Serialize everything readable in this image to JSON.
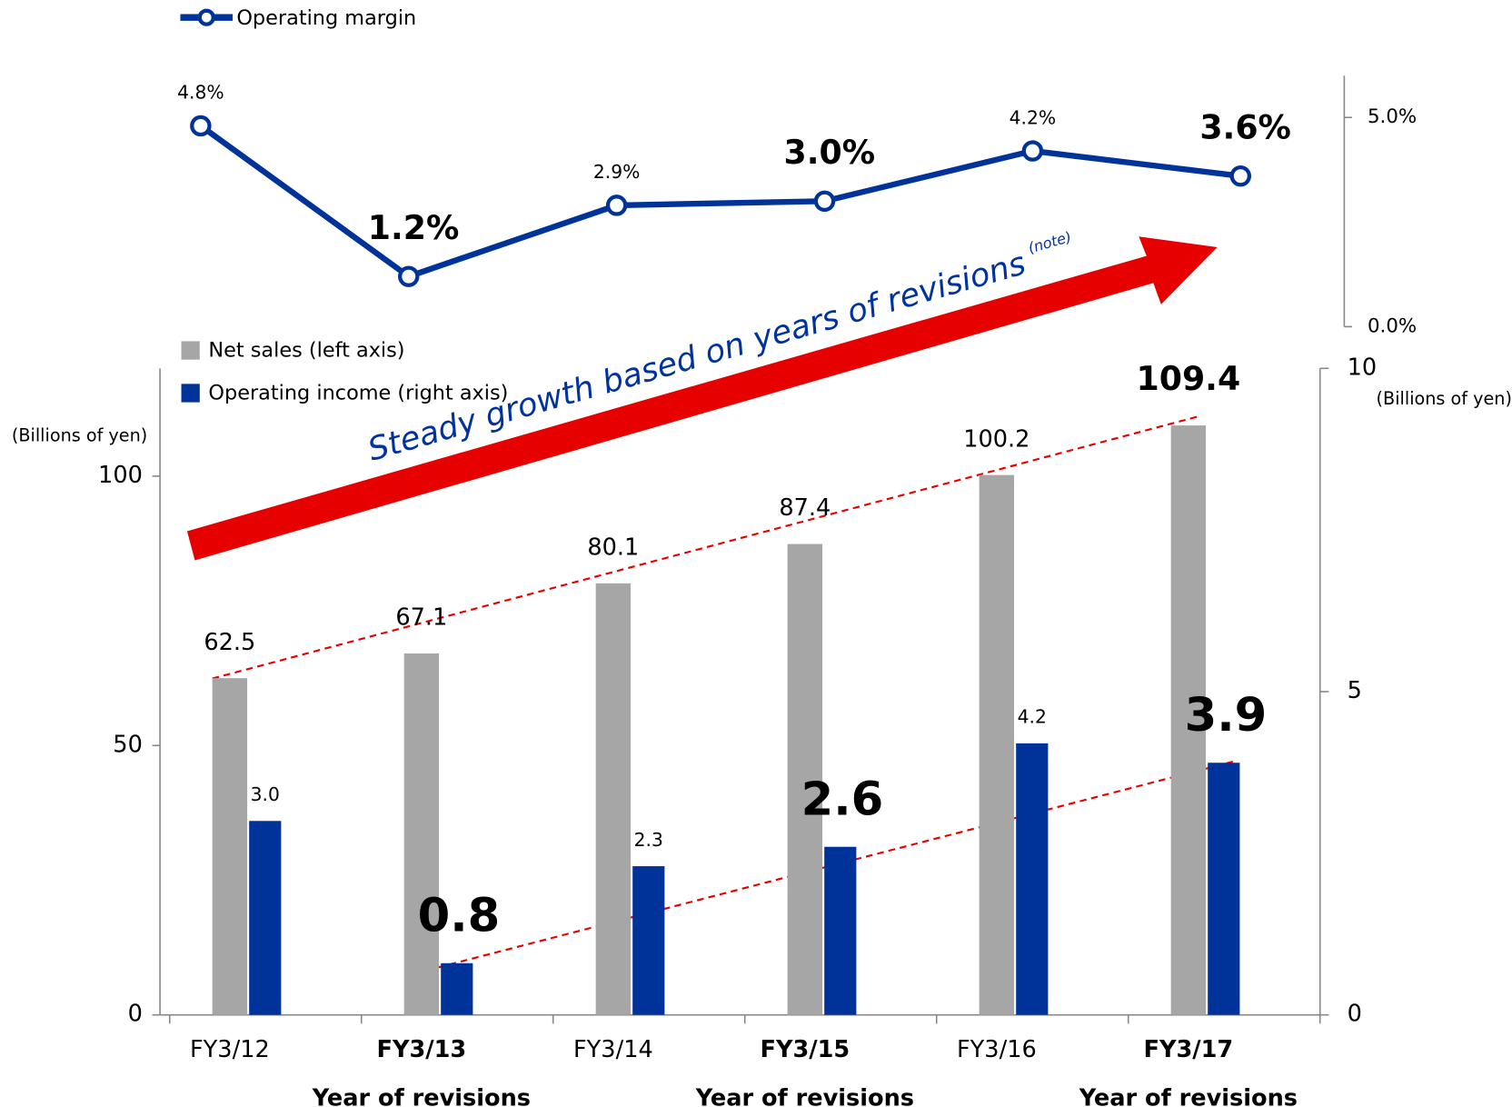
{
  "chart_data": [
    {
      "type": "line",
      "categories": [
        "FY3/12",
        "FY3/13",
        "FY3/14",
        "FY3/15",
        "FY3/16",
        "FY3/17"
      ],
      "series": [
        {
          "name": "Operating margin",
          "color": "#003399",
          "values": [
            4.8,
            1.2,
            2.9,
            3.0,
            4.2,
            3.6
          ],
          "value_labels": [
            "4.8%",
            "1.2%",
            "2.9%",
            "3.0%",
            "4.2%",
            "3.6%"
          ],
          "emphasis": [
            false,
            true,
            false,
            true,
            false,
            true
          ]
        }
      ],
      "ylim": [
        0,
        6
      ],
      "yticks": [
        {
          "value": 0,
          "label": "0.0%"
        },
        {
          "value": 5,
          "label": "5.0%"
        }
      ],
      "emphasis_color": "#e60012"
    },
    {
      "type": "bar",
      "categories": [
        "FY3/12",
        "FY3/13",
        "FY3/14",
        "FY3/15",
        "FY3/16",
        "FY3/17"
      ],
      "highlight": [
        false,
        true,
        false,
        true,
        false,
        true
      ],
      "highlight_note": "Year of revisions",
      "series": [
        {
          "name": "Net sales (left axis)",
          "color": "#a6a6a6",
          "values": [
            62.5,
            67.1,
            80.1,
            87.4,
            100.2,
            109.4
          ],
          "emphasis": [
            false,
            false,
            false,
            false,
            false,
            true
          ],
          "emphasis_color": "#000000"
        },
        {
          "name": "Operating income (right axis)",
          "color": "#003399",
          "axis": "y2",
          "values": [
            3.0,
            0.8,
            2.3,
            2.6,
            4.2,
            3.9
          ],
          "value_labels": [
            "3.0",
            "0.8",
            "2.3",
            "2.6",
            "4.2",
            "3.9"
          ],
          "emphasis": [
            false,
            true,
            false,
            true,
            false,
            true
          ],
          "emphasis_color": "#e60012"
        }
      ],
      "ylabel": "(Billions of yen)",
      "y2label": "(Billions of yen)",
      "ylim": [
        0,
        120
      ],
      "yticks": [
        0,
        50,
        100
      ],
      "y2lim": [
        0,
        10
      ],
      "y2ticks": [
        0,
        5,
        10
      ],
      "annotation": "Steady growth based on years of revisions",
      "annotation_note": "(note)",
      "annotation_color": "#e60000",
      "annotation_text_color": "#0033a0"
    }
  ]
}
